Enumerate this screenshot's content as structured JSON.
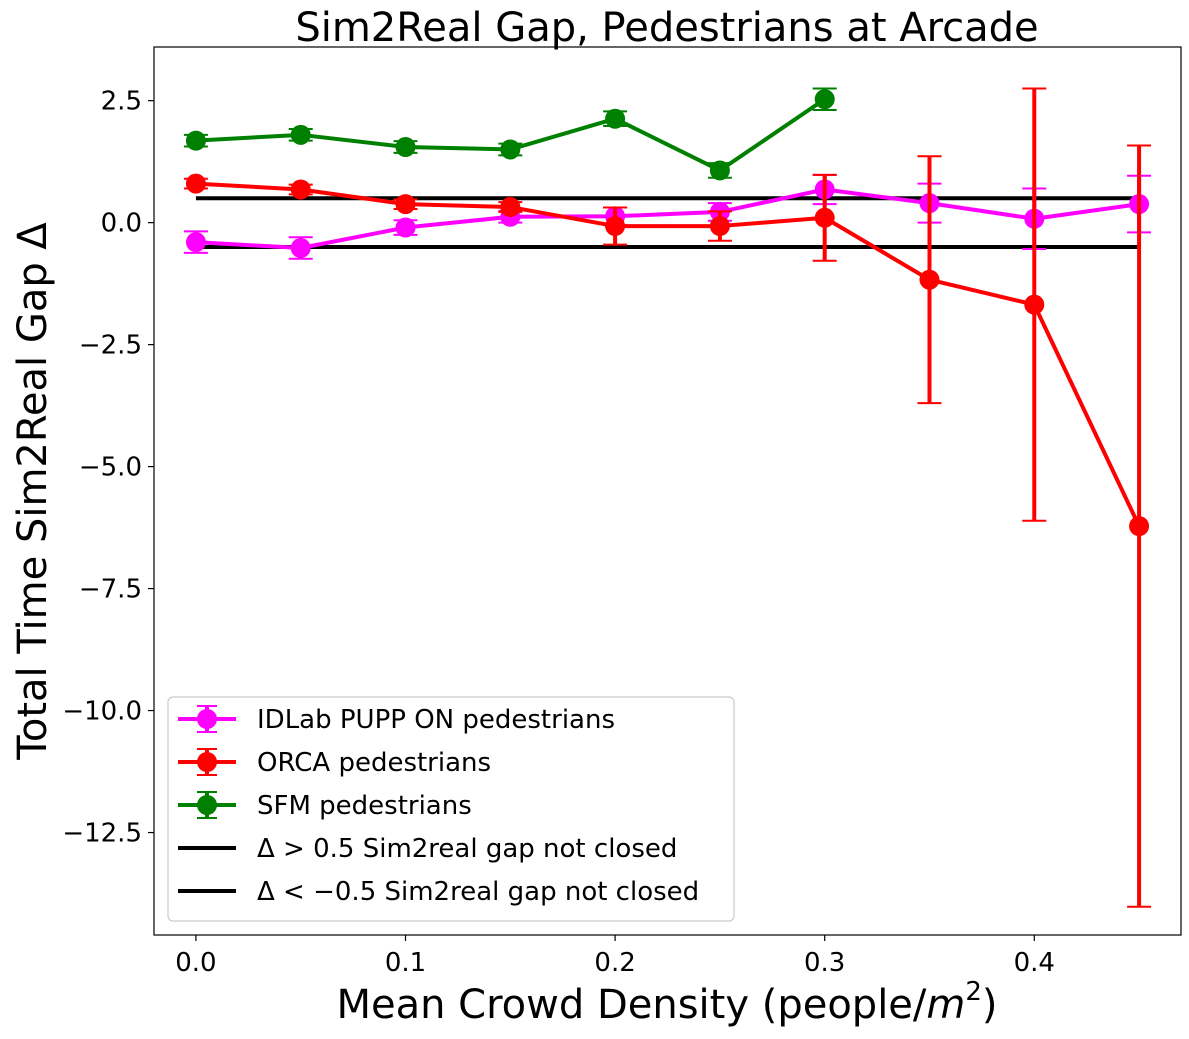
{
  "chart_data": {
    "type": "line",
    "title": "Sim2Real Gap, Pedestrians at Arcade",
    "xlabel": "Mean Crowd Density (people/m²)",
    "xlabel_parts": {
      "prefix": "Mean Crowd Density (people/",
      "var": "m",
      "sup": "2",
      "suffix": ")"
    },
    "ylabel": "Total Time Sim2Real Gap Δ",
    "xlim": [
      -0.02,
      0.47
    ],
    "ylim": [
      -14.6,
      3.6
    ],
    "xticks": [
      0.0,
      0.1,
      0.2,
      0.3,
      0.4
    ],
    "xtick_labels": [
      "0.0",
      "0.1",
      "0.2",
      "0.3",
      "0.4"
    ],
    "yticks": [
      2.5,
      0.0,
      -2.5,
      -5.0,
      -7.5,
      -10.0,
      -12.5
    ],
    "ytick_labels": [
      "2.5",
      "0.0",
      "−2.5",
      "−5.0",
      "−7.5",
      "−10.0",
      "−12.5"
    ],
    "grid": false,
    "legend_position": "lower-left",
    "series": [
      {
        "name": "IDLab PUPP ON pedestrians",
        "color": "#ff00ff",
        "x": [
          0.0,
          0.05,
          0.1,
          0.15,
          0.2,
          0.25,
          0.3,
          0.35,
          0.4,
          0.45
        ],
        "y": [
          -0.4,
          -0.52,
          -0.1,
          0.12,
          0.13,
          0.22,
          0.68,
          0.4,
          0.08,
          0.38
        ],
        "err": [
          0.22,
          0.22,
          0.15,
          0.12,
          0.18,
          0.18,
          0.3,
          0.4,
          0.62,
          0.58
        ]
      },
      {
        "name": "ORCA pedestrians",
        "color": "#ff0000",
        "x": [
          0.0,
          0.05,
          0.1,
          0.15,
          0.2,
          0.25,
          0.3,
          0.35,
          0.4,
          0.45
        ],
        "y": [
          0.8,
          0.68,
          0.38,
          0.32,
          -0.07,
          -0.07,
          0.1,
          -1.17,
          -1.68,
          -6.22
        ],
        "err": [
          0.1,
          0.1,
          0.1,
          0.1,
          0.38,
          0.3,
          0.88,
          2.53,
          4.43,
          7.8
        ]
      },
      {
        "name": "SFM pedestrians",
        "color": "#008000",
        "x": [
          0.0,
          0.05,
          0.1,
          0.15,
          0.2,
          0.25,
          0.3
        ],
        "y": [
          1.68,
          1.8,
          1.55,
          1.5,
          2.13,
          1.07,
          2.53
        ],
        "err": [
          0.12,
          0.12,
          0.12,
          0.12,
          0.15,
          0.15,
          0.22
        ]
      }
    ],
    "hlines": [
      {
        "name": "Δ > 0.5 Sim2real gap not closed",
        "y": 0.5,
        "color": "#000000",
        "xrange": [
          0.0,
          0.45
        ]
      },
      {
        "name": "Δ < −0.5 Sim2real gap not closed",
        "y": -0.5,
        "color": "#000000",
        "xrange": [
          0.0,
          0.45
        ]
      }
    ]
  }
}
